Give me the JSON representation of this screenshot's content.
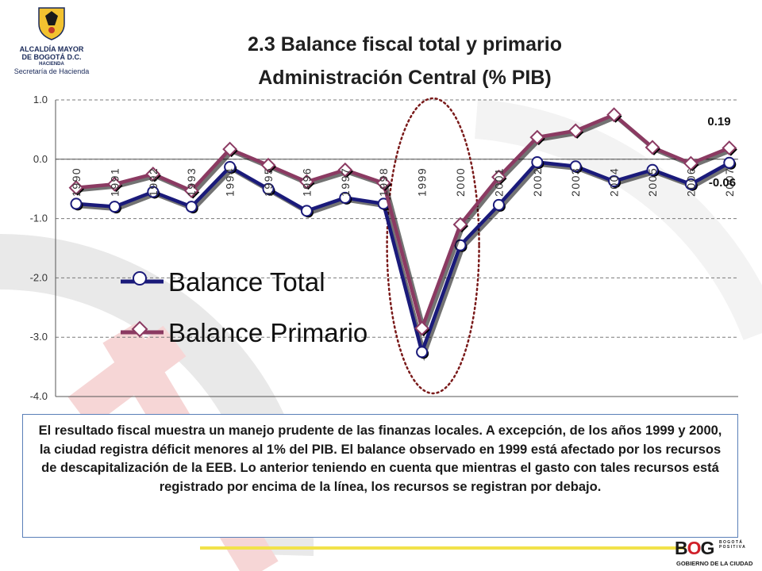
{
  "logo": {
    "line1": "ALCALDÍA MAYOR",
    "line2": "DE BOGOTÁ D.C.",
    "line3": "HACIENDA",
    "line4": "Secretaría de Hacienda"
  },
  "chart_data": {
    "type": "line",
    "title": "2.3  Balance fiscal total y primario",
    "subtitle": "Administración Central (% PIB)",
    "categories": [
      "1990",
      "1991",
      "1992",
      "1993",
      "1994",
      "1995",
      "1996",
      "1997",
      "1998",
      "1999",
      "2000",
      "2001",
      "2002",
      "2003",
      "2004",
      "2005",
      "2006",
      "2007"
    ],
    "series": [
      {
        "name": "Balance Total",
        "color": "#1a1a7a",
        "marker": "circle",
        "values": [
          -0.75,
          -0.8,
          -0.55,
          -0.8,
          -0.13,
          -0.5,
          -0.87,
          -0.65,
          -0.75,
          -3.25,
          -1.45,
          -0.77,
          -0.05,
          -0.12,
          -0.37,
          -0.18,
          -0.42,
          -0.06
        ]
      },
      {
        "name": "Balance Primario",
        "color": "#8b3a62",
        "marker": "diamond",
        "values": [
          -0.48,
          -0.42,
          -0.25,
          -0.53,
          0.17,
          -0.1,
          -0.38,
          -0.18,
          -0.4,
          -2.85,
          -1.1,
          -0.3,
          0.37,
          0.48,
          0.75,
          0.2,
          -0.07,
          0.19
        ]
      }
    ],
    "ylim": [
      -4.0,
      1.0
    ],
    "yticks": [
      "1.0",
      "0.0",
      "-1.0",
      "-2.0",
      "-3.0",
      "-4.0"
    ],
    "grid": "horizontal dashed",
    "legend": "lower-left",
    "annotations": [
      "0.19",
      "-0.06"
    ],
    "highlight": "dotted ellipse around 1999"
  },
  "note": "El resultado fiscal muestra un manejo prudente de las finanzas locales. A excepción, de los años 1999 y 2000, la ciudad registra déficit menores al 1% del PIB. El balance observado en 1999 está afectado por los recursos de descapitalización de la EEB. Lo anterior teniendo en cuenta que mientras el gasto con tales recursos está registrado por encima de la línea, los recursos se registran por debajo.",
  "footer_logo": {
    "letters_b": "B",
    "letters_o": "O",
    "letters_g": "G",
    "side1": "B O G O T Á",
    "side2": "P O S I T I V A",
    "sub": "GOBIERNO DE LA CIUDAD"
  }
}
